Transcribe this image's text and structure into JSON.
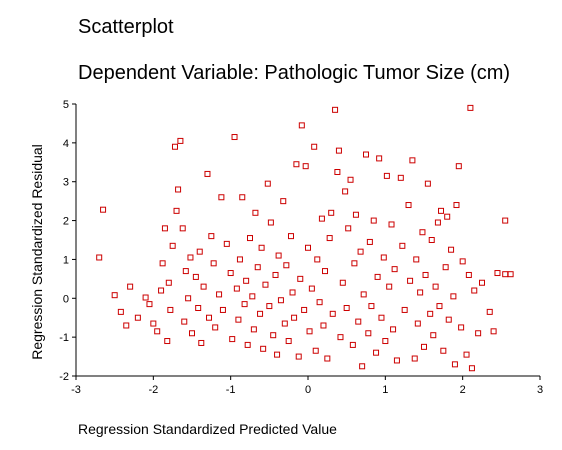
{
  "chart_data": {
    "type": "scatter",
    "title": "Scatterplot",
    "subtitle": "Dependent Variable: Pathologic Tumor Size (cm)",
    "xlabel": "Regression Standardized Predicted Value",
    "ylabel": "Regression Standardized Residual",
    "xlim": [
      -3,
      3
    ],
    "ylim": [
      -2,
      5
    ],
    "xticks": [
      "-3",
      "-2",
      "-1",
      "0",
      "1",
      "2",
      "3"
    ],
    "yticks": [
      "-2",
      "-1",
      "0",
      "1",
      "2",
      "3",
      "4",
      "5"
    ],
    "marker": "open-square",
    "grid": false,
    "colors": {
      "marker": "#cc0000",
      "axis": "#000000"
    },
    "points": [
      [
        -2.65,
        2.28
      ],
      [
        -2.7,
        1.05
      ],
      [
        -2.5,
        0.08
      ],
      [
        -2.42,
        -0.35
      ],
      [
        -2.35,
        -0.7
      ],
      [
        -2.3,
        0.3
      ],
      [
        -2.2,
        -0.5
      ],
      [
        -2.1,
        0.02
      ],
      [
        -2.05,
        -0.15
      ],
      [
        -2.0,
        -0.65
      ],
      [
        -1.95,
        -0.85
      ],
      [
        -1.9,
        0.2
      ],
      [
        -1.88,
        0.9
      ],
      [
        -1.85,
        1.8
      ],
      [
        -1.82,
        -1.1
      ],
      [
        -1.8,
        0.4
      ],
      [
        -1.78,
        -0.3
      ],
      [
        -1.75,
        1.35
      ],
      [
        -1.72,
        3.9
      ],
      [
        -1.7,
        2.25
      ],
      [
        -1.68,
        2.8
      ],
      [
        -1.65,
        4.05
      ],
      [
        -1.62,
        1.8
      ],
      [
        -1.6,
        -0.6
      ],
      [
        -1.58,
        0.7
      ],
      [
        -1.55,
        0.0
      ],
      [
        -1.52,
        1.05
      ],
      [
        -1.5,
        -0.9
      ],
      [
        -1.45,
        0.55
      ],
      [
        -1.42,
        -0.25
      ],
      [
        -1.4,
        1.2
      ],
      [
        -1.38,
        -1.15
      ],
      [
        -1.35,
        0.3
      ],
      [
        -1.3,
        3.2
      ],
      [
        -1.28,
        -0.5
      ],
      [
        -1.25,
        1.6
      ],
      [
        -1.22,
        0.9
      ],
      [
        -1.2,
        -0.75
      ],
      [
        -1.15,
        0.1
      ],
      [
        -1.12,
        2.6
      ],
      [
        -1.1,
        -0.3
      ],
      [
        -1.05,
        1.4
      ],
      [
        -1.0,
        0.65
      ],
      [
        -0.98,
        -1.05
      ],
      [
        -0.95,
        4.15
      ],
      [
        -0.92,
        0.25
      ],
      [
        -0.9,
        -0.55
      ],
      [
        -0.88,
        1.0
      ],
      [
        -0.85,
        2.6
      ],
      [
        -0.82,
        -0.15
      ],
      [
        -0.8,
        0.45
      ],
      [
        -0.78,
        -1.2
      ],
      [
        -0.75,
        1.55
      ],
      [
        -0.72,
        0.05
      ],
      [
        -0.7,
        -0.8
      ],
      [
        -0.68,
        2.2
      ],
      [
        -0.65,
        0.8
      ],
      [
        -0.62,
        -0.4
      ],
      [
        -0.6,
        1.3
      ],
      [
        -0.58,
        -1.3
      ],
      [
        -0.55,
        0.35
      ],
      [
        -0.52,
        2.95
      ],
      [
        -0.5,
        -0.2
      ],
      [
        -0.48,
        1.95
      ],
      [
        -0.45,
        -0.95
      ],
      [
        -0.42,
        0.6
      ],
      [
        -0.4,
        -1.45
      ],
      [
        -0.38,
        1.1
      ],
      [
        -0.35,
        -0.05
      ],
      [
        -0.32,
        2.5
      ],
      [
        -0.3,
        -0.65
      ],
      [
        -0.28,
        0.85
      ],
      [
        -0.25,
        -1.1
      ],
      [
        -0.22,
        1.6
      ],
      [
        -0.2,
        0.15
      ],
      [
        -0.18,
        -0.5
      ],
      [
        -0.15,
        3.45
      ],
      [
        -0.12,
        -1.5
      ],
      [
        -0.1,
        0.5
      ],
      [
        -0.08,
        4.45
      ],
      [
        -0.05,
        -0.3
      ],
      [
        -0.03,
        3.4
      ],
      [
        0.0,
        1.3
      ],
      [
        0.02,
        -0.85
      ],
      [
        0.05,
        0.25
      ],
      [
        0.08,
        3.9
      ],
      [
        0.1,
        -1.35
      ],
      [
        0.12,
        1.0
      ],
      [
        0.15,
        -0.1
      ],
      [
        0.18,
        2.05
      ],
      [
        0.2,
        -0.7
      ],
      [
        0.22,
        0.7
      ],
      [
        0.25,
        -1.55
      ],
      [
        0.28,
        1.55
      ],
      [
        0.3,
        2.2
      ],
      [
        0.32,
        -0.4
      ],
      [
        0.35,
        4.85
      ],
      [
        0.38,
        3.25
      ],
      [
        0.4,
        3.8
      ],
      [
        0.42,
        -1.0
      ],
      [
        0.45,
        0.4
      ],
      [
        0.48,
        2.75
      ],
      [
        0.5,
        -0.25
      ],
      [
        0.52,
        1.8
      ],
      [
        0.55,
        3.05
      ],
      [
        0.58,
        -1.2
      ],
      [
        0.6,
        0.9
      ],
      [
        0.62,
        2.15
      ],
      [
        0.65,
        -0.6
      ],
      [
        0.68,
        1.2
      ],
      [
        0.7,
        -1.75
      ],
      [
        0.72,
        0.1
      ],
      [
        0.75,
        3.7
      ],
      [
        0.78,
        -0.9
      ],
      [
        0.8,
        1.45
      ],
      [
        0.82,
        -0.2
      ],
      [
        0.85,
        2.0
      ],
      [
        0.88,
        -1.4
      ],
      [
        0.9,
        0.55
      ],
      [
        0.92,
        3.6
      ],
      [
        0.95,
        -0.5
      ],
      [
        0.98,
        1.05
      ],
      [
        1.0,
        -1.1
      ],
      [
        1.02,
        3.15
      ],
      [
        1.05,
        0.3
      ],
      [
        1.08,
        1.9
      ],
      [
        1.1,
        -0.8
      ],
      [
        1.12,
        0.75
      ],
      [
        1.15,
        -1.6
      ],
      [
        1.2,
        3.1
      ],
      [
        1.22,
        1.35
      ],
      [
        1.25,
        -0.3
      ],
      [
        1.3,
        2.4
      ],
      [
        1.32,
        0.45
      ],
      [
        1.35,
        3.55
      ],
      [
        1.38,
        -1.55
      ],
      [
        1.4,
        1.0
      ],
      [
        1.42,
        -0.65
      ],
      [
        1.45,
        0.15
      ],
      [
        1.48,
        1.7
      ],
      [
        1.5,
        -1.25
      ],
      [
        1.52,
        0.6
      ],
      [
        1.55,
        2.95
      ],
      [
        1.58,
        -0.4
      ],
      [
        1.6,
        1.5
      ],
      [
        1.62,
        -0.95
      ],
      [
        1.65,
        0.3
      ],
      [
        1.68,
        1.95
      ],
      [
        1.7,
        -0.2
      ],
      [
        1.72,
        2.25
      ],
      [
        1.75,
        -1.35
      ],
      [
        1.78,
        0.8
      ],
      [
        1.8,
        2.1
      ],
      [
        1.82,
        -0.55
      ],
      [
        1.85,
        1.25
      ],
      [
        1.88,
        0.05
      ],
      [
        1.9,
        -1.7
      ],
      [
        1.92,
        2.4
      ],
      [
        1.95,
        3.4
      ],
      [
        1.98,
        -0.75
      ],
      [
        2.0,
        0.95
      ],
      [
        2.05,
        -1.45
      ],
      [
        2.08,
        0.6
      ],
      [
        2.1,
        4.9
      ],
      [
        2.12,
        -1.8
      ],
      [
        2.15,
        0.2
      ],
      [
        2.2,
        -0.9
      ],
      [
        2.25,
        0.4
      ],
      [
        2.35,
        -0.35
      ],
      [
        2.4,
        -0.85
      ],
      [
        2.45,
        0.65
      ],
      [
        2.55,
        2.0
      ],
      [
        2.55,
        0.62
      ],
      [
        2.62,
        0.62
      ]
    ]
  }
}
